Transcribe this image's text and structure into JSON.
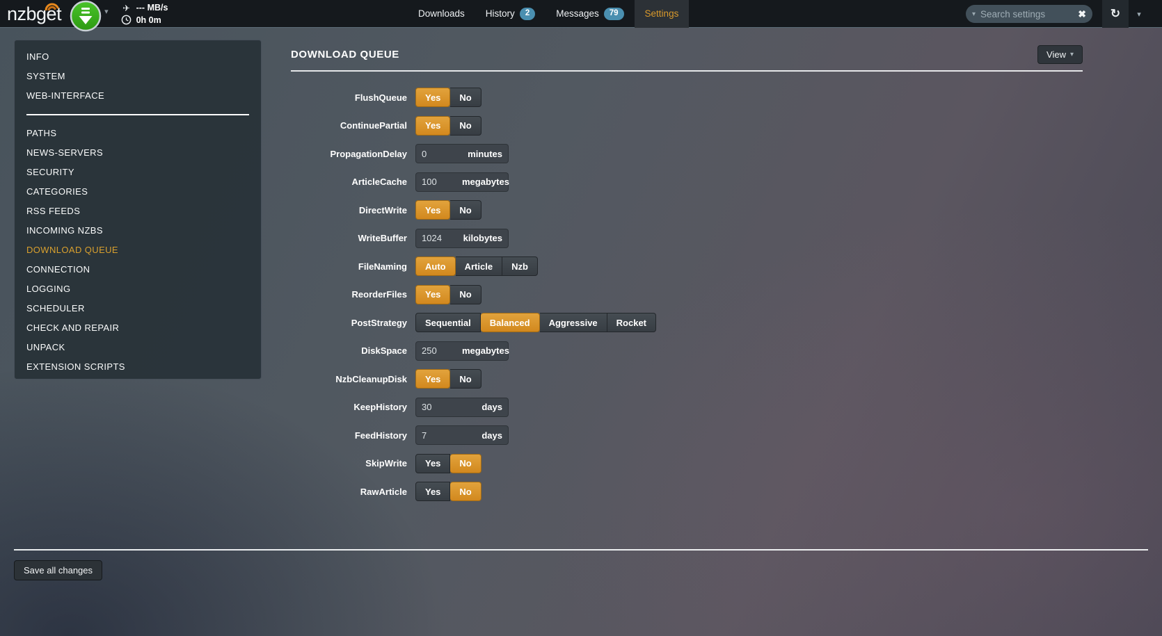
{
  "navbar": {
    "logo_text": "nzbget",
    "status": {
      "speed": "--- MB/s",
      "uptime": "0h 0m"
    },
    "tabs": [
      {
        "label": "Downloads",
        "badge": null,
        "active": false
      },
      {
        "label": "History",
        "badge": "2",
        "active": false
      },
      {
        "label": "Messages",
        "badge": "79",
        "active": false
      },
      {
        "label": "Settings",
        "badge": null,
        "active": true
      }
    ],
    "search": {
      "placeholder": "Search settings"
    }
  },
  "icons": {
    "caret_down": "▾",
    "refresh": "↻",
    "clear": "✖",
    "airplane": "✈"
  },
  "sidebar": {
    "active_item": "DOWNLOAD QUEUE",
    "sections": [
      {
        "items": [
          "INFO",
          "SYSTEM",
          "WEB-INTERFACE"
        ]
      },
      {
        "items": [
          "PATHS",
          "NEWS-SERVERS",
          "SECURITY",
          "CATEGORIES",
          "RSS FEEDS",
          "INCOMING NZBS",
          "DOWNLOAD QUEUE",
          "CONNECTION",
          "LOGGING",
          "SCHEDULER",
          "CHECK AND REPAIR",
          "UNPACK",
          "EXTENSION SCRIPTS"
        ]
      }
    ]
  },
  "main": {
    "title": "DOWNLOAD QUEUE",
    "view_button_label": "View",
    "rows": [
      {
        "label": "FlushQueue",
        "type": "switch",
        "options": [
          "Yes",
          "No"
        ],
        "active": 0
      },
      {
        "label": "ContinuePartial",
        "type": "switch",
        "options": [
          "Yes",
          "No"
        ],
        "active": 0
      },
      {
        "label": "PropagationDelay",
        "type": "input",
        "value": "0",
        "unit": "minutes"
      },
      {
        "label": "ArticleCache",
        "type": "input",
        "value": "100",
        "unit": "megabytes"
      },
      {
        "label": "DirectWrite",
        "type": "switch",
        "options": [
          "Yes",
          "No"
        ],
        "active": 0
      },
      {
        "label": "WriteBuffer",
        "type": "input",
        "value": "1024",
        "unit": "kilobytes"
      },
      {
        "label": "FileNaming",
        "type": "switch",
        "options": [
          "Auto",
          "Article",
          "Nzb"
        ],
        "active": 0
      },
      {
        "label": "ReorderFiles",
        "type": "switch",
        "options": [
          "Yes",
          "No"
        ],
        "active": 0
      },
      {
        "label": "PostStrategy",
        "type": "switch",
        "options": [
          "Sequential",
          "Balanced",
          "Aggressive",
          "Rocket"
        ],
        "active": 1
      },
      {
        "label": "DiskSpace",
        "type": "input",
        "value": "250",
        "unit": "megabytes"
      },
      {
        "label": "NzbCleanupDisk",
        "type": "switch",
        "options": [
          "Yes",
          "No"
        ],
        "active": 0
      },
      {
        "label": "KeepHistory",
        "type": "input",
        "value": "30",
        "unit": "days"
      },
      {
        "label": "FeedHistory",
        "type": "input",
        "value": "7",
        "unit": "days"
      },
      {
        "label": "SkipWrite",
        "type": "switch",
        "options": [
          "Yes",
          "No"
        ],
        "active": 1
      },
      {
        "label": "RawArticle",
        "type": "switch",
        "options": [
          "Yes",
          "No"
        ],
        "active": 1
      }
    ],
    "save_button_label": "Save all changes"
  },
  "colors": {
    "accent_orange": "#d9922a",
    "badge_blue": "#4a8fb0",
    "logo_green": "#3fae22",
    "navbar_bg": "#15191d"
  }
}
